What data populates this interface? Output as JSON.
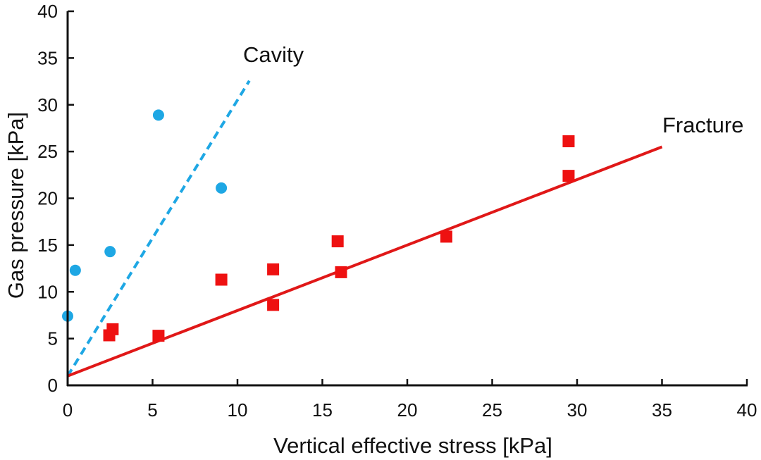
{
  "chart_data": {
    "type": "scatter",
    "title": "",
    "xlabel": "Vertical effective stress [kPa]",
    "ylabel": "Gas pressure [kPa]",
    "xlim": [
      0,
      40
    ],
    "ylim": [
      0,
      40
    ],
    "xticks": [
      0,
      5,
      10,
      15,
      20,
      25,
      30,
      35,
      40
    ],
    "yticks": [
      0,
      5,
      10,
      15,
      20,
      25,
      30,
      35,
      40
    ],
    "grid": false,
    "legend": "none",
    "series": [
      {
        "name": "Cavity",
        "marker": "circle",
        "color": "#1ea7e4",
        "points": [
          [
            0.0,
            7.4
          ],
          [
            0.45,
            12.3
          ],
          [
            2.5,
            14.3
          ],
          [
            5.35,
            28.9
          ],
          [
            9.05,
            21.1
          ]
        ]
      },
      {
        "name": "Fracture",
        "marker": "square",
        "color": "#ee1111",
        "points": [
          [
            2.45,
            5.35
          ],
          [
            2.65,
            6.0
          ],
          [
            5.35,
            5.3
          ],
          [
            9.05,
            11.3
          ],
          [
            12.1,
            12.4
          ],
          [
            12.1,
            8.6
          ],
          [
            15.9,
            15.4
          ],
          [
            16.1,
            12.1
          ],
          [
            22.3,
            15.9
          ],
          [
            29.5,
            26.1
          ],
          [
            29.5,
            22.4
          ]
        ]
      }
    ],
    "lines": [
      {
        "name": "Cavity",
        "style": "dashed",
        "color": "#1ea7e4",
        "intercept": 1.0,
        "slope": 2.95,
        "x_range": [
          0,
          10.7
        ],
        "label": "Cavity"
      },
      {
        "name": "Fracture",
        "style": "solid",
        "color": "#e01818",
        "intercept": 1.0,
        "slope": 0.7,
        "x_range": [
          0,
          35
        ],
        "label": "Fracture"
      }
    ],
    "annotations": [
      {
        "text": "Cavity",
        "near_line": "Cavity"
      },
      {
        "text": "Fracture",
        "near_line": "Fracture"
      }
    ]
  }
}
